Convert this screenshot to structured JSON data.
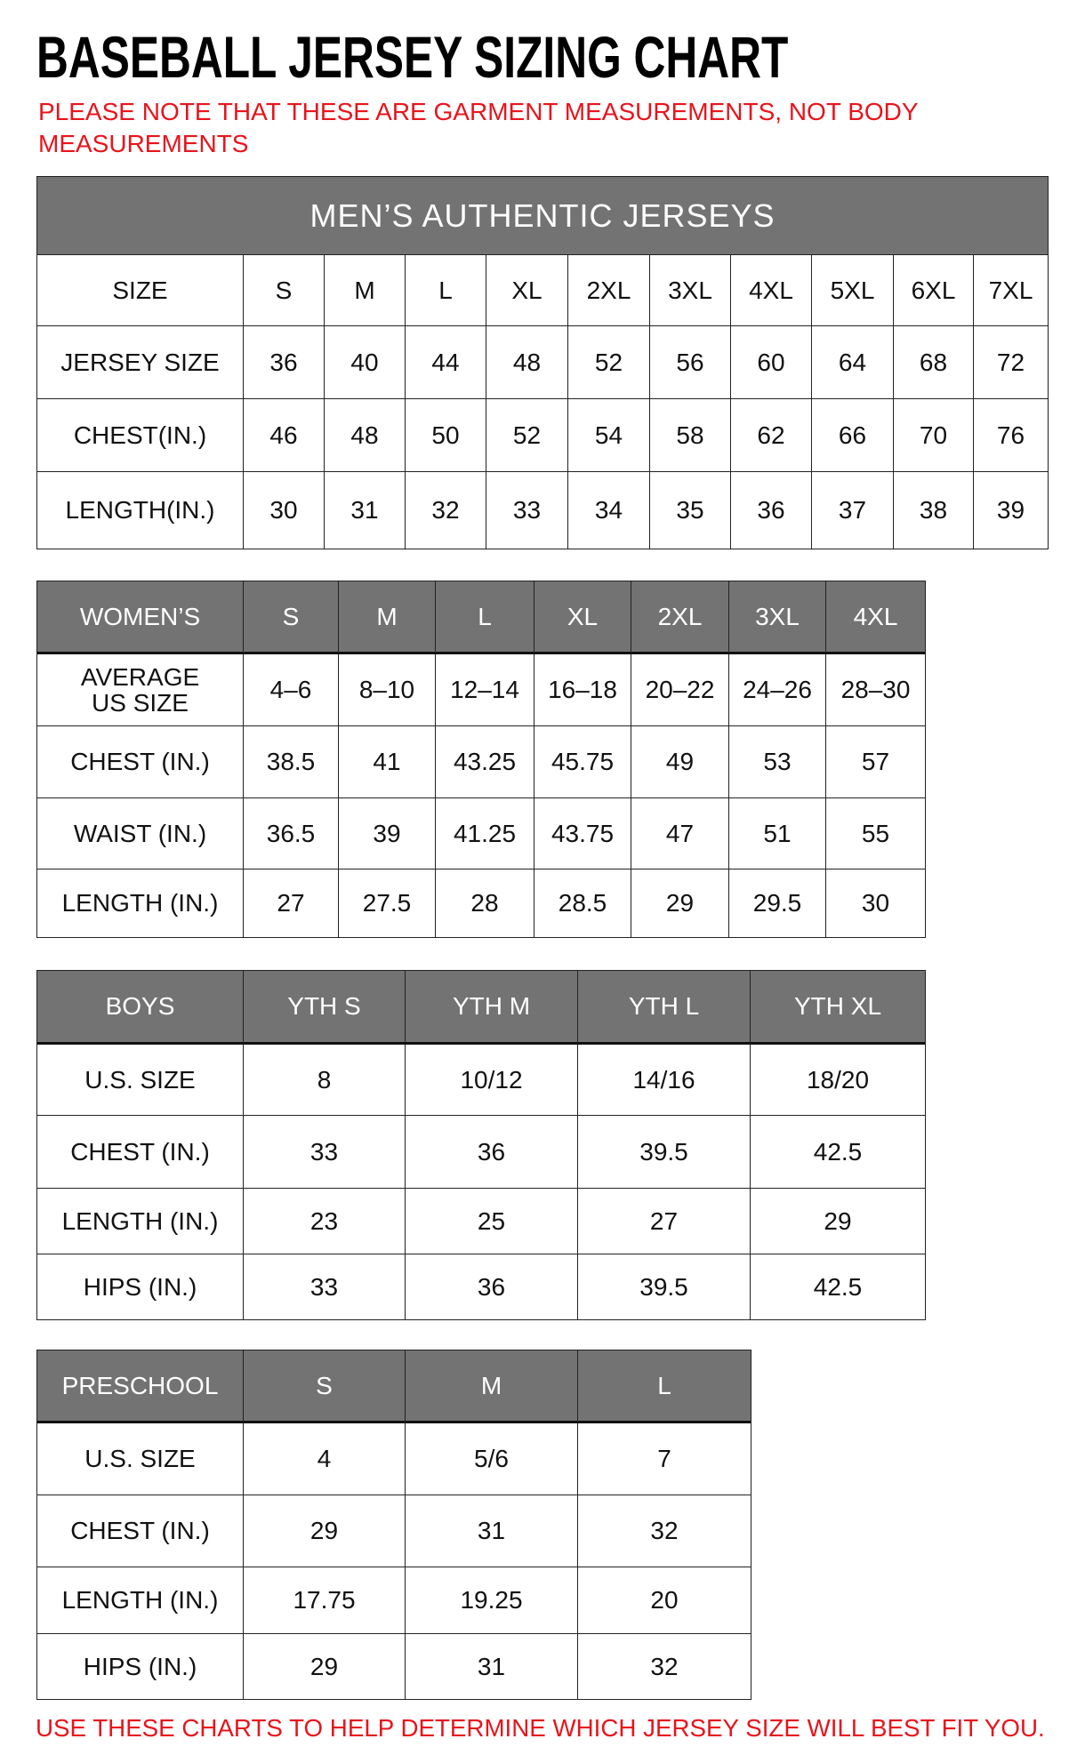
{
  "title": "BASEBALL JERSEY SIZING CHART",
  "note": "PLEASE NOTE THAT THESE ARE GARMENT MEASUREMENTS, NOT BODY MEASUREMENTS",
  "footer": "USE THESE CHARTS TO HELP DETERMINE WHICH JERSEY SIZE WILL BEST FIT YOU.",
  "colors": {
    "header_bg": "#737373",
    "note_red": "#e8141c"
  },
  "tables": [
    {
      "id": "mens",
      "banner": "MEN’S AUTHENTIC JERSEYS",
      "header": [
        "SIZE",
        "S",
        "M",
        "L",
        "XL",
        "2XL",
        "3XL",
        "4XL",
        "5XL",
        "6XL",
        "7XL"
      ],
      "header_style": "plain",
      "rows": [
        [
          "JERSEY SIZE",
          "36",
          "40",
          "44",
          "48",
          "52",
          "56",
          "60",
          "64",
          "68",
          "72"
        ],
        [
          "CHEST(IN.)",
          "46",
          "48",
          "50",
          "52",
          "54",
          "58",
          "62",
          "66",
          "70",
          "76"
        ],
        [
          "LENGTH(IN.)",
          "30",
          "31",
          "32",
          "33",
          "34",
          "35",
          "36",
          "37",
          "38",
          "39"
        ]
      ]
    },
    {
      "id": "womens",
      "header": [
        "WOMEN’S",
        "S",
        "M",
        "L",
        "XL",
        "2XL",
        "3XL",
        "4XL"
      ],
      "header_style": "gray",
      "rows": [
        [
          "AVERAGE US SIZE",
          "4–6",
          "8–10",
          "12–14",
          "16–18",
          "20–22",
          "24–26",
          "28–30"
        ],
        [
          "CHEST (IN.)",
          "38.5",
          "41",
          "43.25",
          "45.75",
          "49",
          "53",
          "57"
        ],
        [
          "WAIST (IN.)",
          "36.5",
          "39",
          "41.25",
          "43.75",
          "47",
          "51",
          "55"
        ],
        [
          "LENGTH (IN.)",
          "27",
          "27.5",
          "28",
          "28.5",
          "29",
          "29.5",
          "30"
        ]
      ]
    },
    {
      "id": "boys",
      "header": [
        "BOYS",
        "YTH S",
        "YTH M",
        "YTH L",
        "YTH XL"
      ],
      "header_style": "gray",
      "rows": [
        [
          "U.S. SIZE",
          "8",
          "10/12",
          "14/16",
          "18/20"
        ],
        [
          "CHEST (IN.)",
          "33",
          "36",
          "39.5",
          "42.5"
        ],
        [
          "LENGTH (IN.)",
          "23",
          "25",
          "27",
          "29"
        ],
        [
          "HIPS (IN.)",
          "33",
          "36",
          "39.5",
          "42.5"
        ]
      ]
    },
    {
      "id": "preschool",
      "header": [
        "PRESCHOOL",
        "S",
        "M",
        "L"
      ],
      "header_style": "gray",
      "rows": [
        [
          "U.S. SIZE",
          "4",
          "5/6",
          "7"
        ],
        [
          "CHEST (IN.)",
          "29",
          "31",
          "32"
        ],
        [
          "LENGTH (IN.)",
          "17.75",
          "19.25",
          "20"
        ],
        [
          "HIPS (IN.)",
          "29",
          "31",
          "32"
        ]
      ]
    }
  ]
}
